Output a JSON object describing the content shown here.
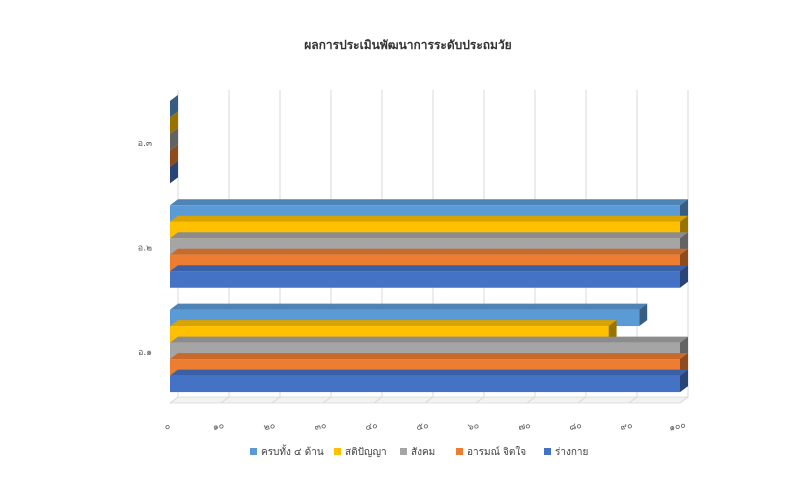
{
  "chart_data": {
    "type": "bar",
    "orientation": "horizontal",
    "style": "3d-clustered",
    "title": "ผลการประเมินพัฒนาการระดับประถมวัย",
    "categories": [
      "อ.๓",
      "อ.๒",
      "อ.๑"
    ],
    "series": [
      {
        "name": "ร่างกาย",
        "color": "#4472C4",
        "values": [
          0,
          100,
          100
        ]
      },
      {
        "name": "อารมณ์ จิตใจ",
        "color": "#ED7D31",
        "values": [
          0,
          100,
          100
        ]
      },
      {
        "name": "สังคม",
        "color": "#A5A5A5",
        "values": [
          0,
          100,
          100
        ]
      },
      {
        "name": "สติปัญญา",
        "color": "#FFC000",
        "values": [
          0,
          100,
          86
        ]
      },
      {
        "name": "ครบทั้ง ๔ ด้าน",
        "color": "#5B9BD5",
        "values": [
          0,
          100,
          92
        ]
      }
    ],
    "x_tick_labels": [
      "๐",
      "๑๐",
      "๒๐",
      "๓๐",
      "๔๐",
      "๕๐",
      "๖๐",
      "๗๐",
      "๘๐",
      "๙๐",
      "๑๐๐"
    ],
    "xlim": [
      0,
      100
    ],
    "grid": true,
    "legend_position": "bottom",
    "legend_order": [
      "ครบทั้ง ๔ ด้าน",
      "สติปัญญา",
      "สังคม",
      "อารมณ์ จิตใจ",
      "ร่างกาย"
    ]
  }
}
